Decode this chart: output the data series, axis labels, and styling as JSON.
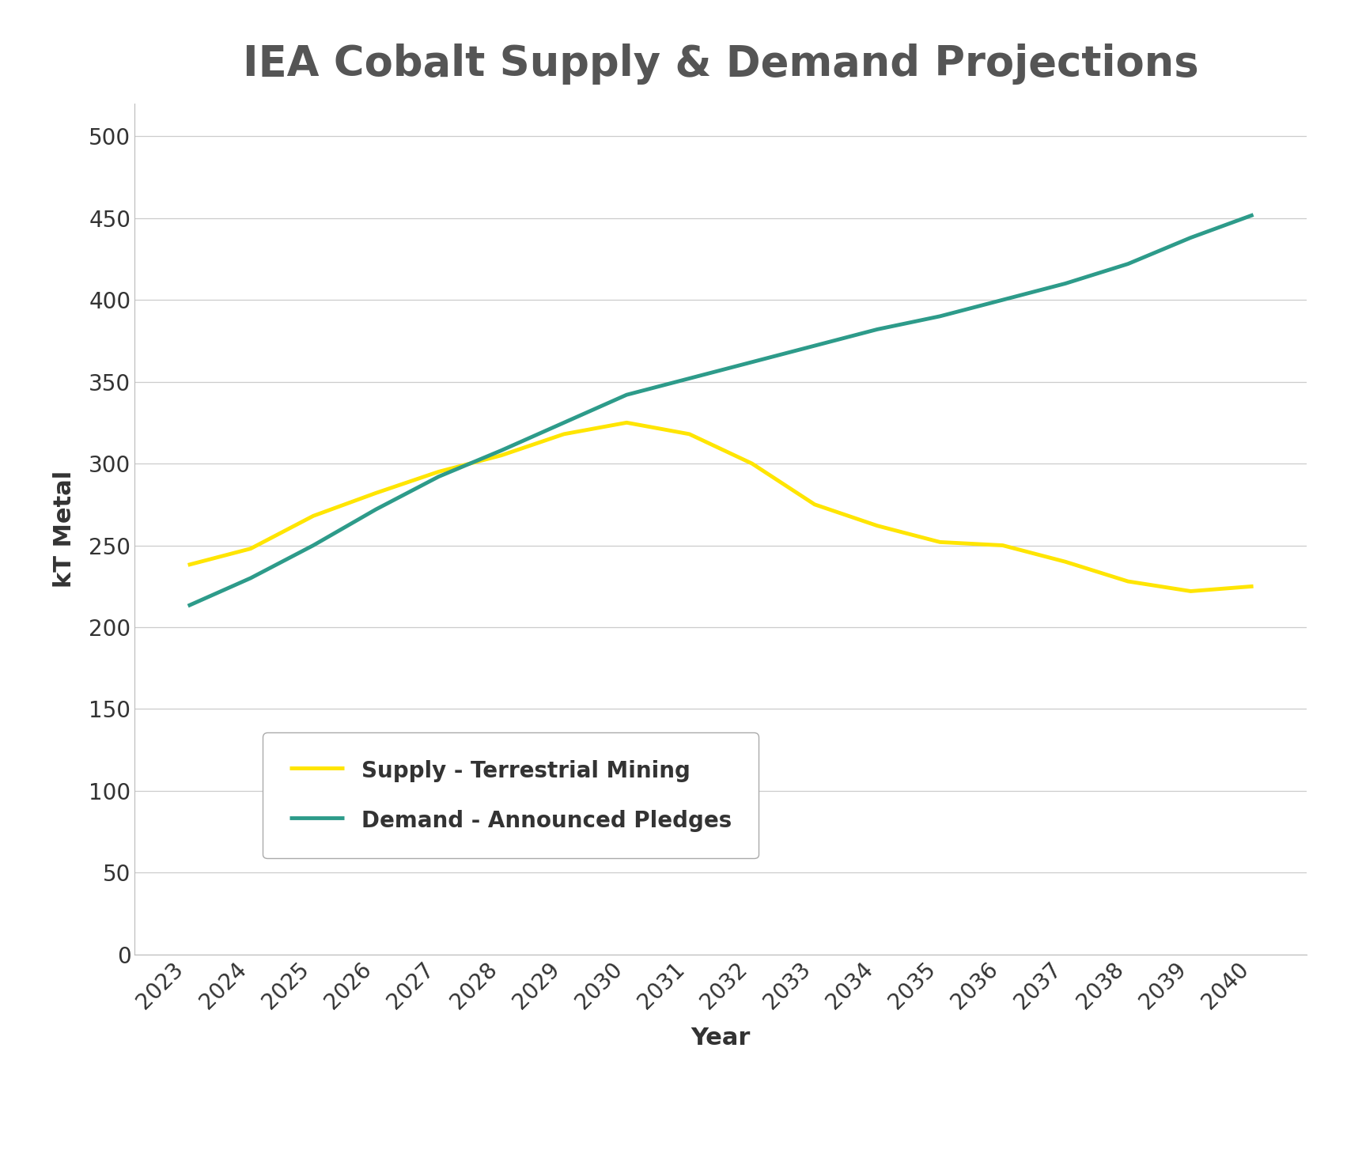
{
  "title": "IEA Cobalt Supply & Demand Projections",
  "xlabel": "Year",
  "ylabel": "kT Metal",
  "years": [
    2023,
    2024,
    2025,
    2026,
    2027,
    2028,
    2029,
    2030,
    2031,
    2032,
    2033,
    2034,
    2035,
    2036,
    2037,
    2038,
    2039,
    2040
  ],
  "supply_terrestrial": [
    238,
    248,
    268,
    282,
    295,
    305,
    318,
    325,
    318,
    300,
    275,
    262,
    252,
    250,
    240,
    228,
    222,
    225
  ],
  "demand_announced": [
    213,
    230,
    250,
    272,
    292,
    308,
    325,
    342,
    352,
    362,
    372,
    382,
    390,
    400,
    410,
    422,
    438,
    452
  ],
  "supply_color": "#FFE500",
  "demand_color": "#2D9B8A",
  "line_width": 3.5,
  "ylim": [
    0,
    520
  ],
  "yticks": [
    0,
    50,
    100,
    150,
    200,
    250,
    300,
    350,
    400,
    450,
    500
  ],
  "title_fontsize": 38,
  "axis_label_fontsize": 22,
  "tick_fontsize": 20,
  "legend_fontsize": 20,
  "background_color": "#ffffff",
  "grid_color": "#cccccc",
  "legend_supply_label": "Supply - Terrestrial Mining",
  "legend_demand_label": "Demand - Announced Pledges",
  "title_color": "#555555",
  "text_color": "#333333"
}
